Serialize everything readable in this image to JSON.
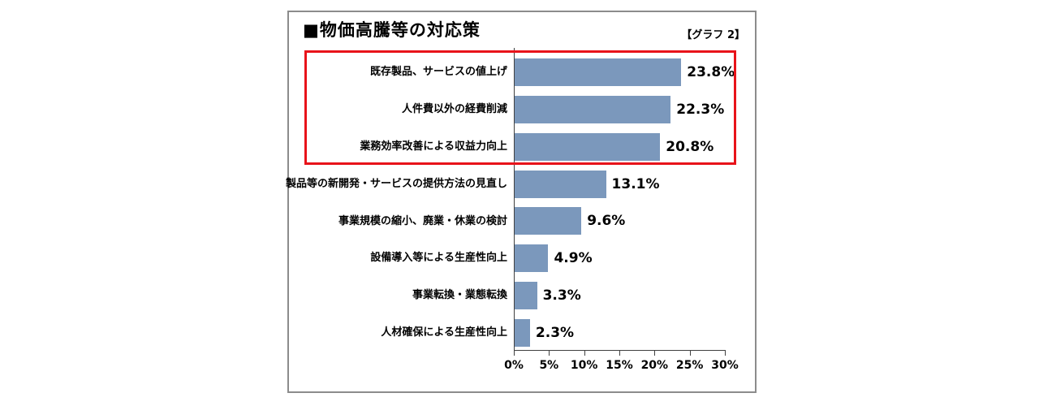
{
  "frame": {
    "title": "■物価高騰等の対応策",
    "tag": "【グラフ 2】"
  },
  "chart_data": {
    "type": "bar",
    "orientation": "horizontal",
    "title": "物価高騰等の対応策",
    "categories": [
      "既存製品、サービスの値上げ",
      "人件費以外の経費削減",
      "業務効率改善による収益力向上",
      "製品等の新開発・サービスの提供方法の見直し",
      "事業規模の縮小、廃業・休業の検討",
      "設備導入等による生産性向上",
      "事業転換・業態転換",
      "人材確保による生産性向上"
    ],
    "values": [
      23.8,
      22.3,
      20.8,
      13.1,
      9.6,
      4.9,
      3.3,
      2.3
    ],
    "value_labels": [
      "23.8%",
      "22.3%",
      "20.8%",
      "13.1%",
      "9.6%",
      "4.9%",
      "3.3%",
      "2.3%"
    ],
    "x_ticks": [
      "0%",
      "5%",
      "10%",
      "15%",
      "20%",
      "25%",
      "30%"
    ],
    "xlim": [
      0,
      30
    ],
    "grid": false,
    "legend": "none",
    "bar_color": "#7b98bc",
    "axis_color": "#404040",
    "highlight": {
      "rows": [
        0,
        1,
        2
      ],
      "box_color": "#e8131a",
      "note": "red box around top three bars"
    }
  },
  "layout_constants": {}
}
